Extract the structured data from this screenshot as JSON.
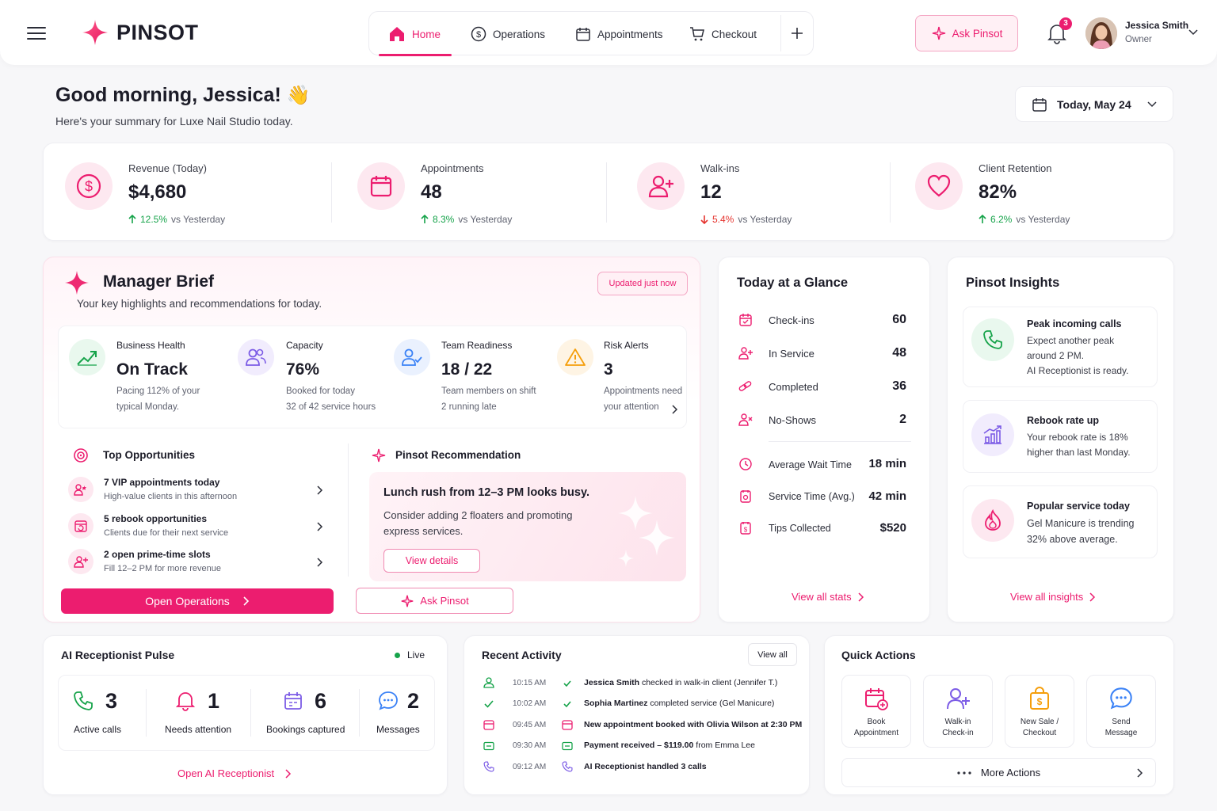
{
  "brand": {
    "name": "PINSOT"
  },
  "nav": {
    "home": "Home",
    "operations": "Operations",
    "appointments": "Appointments",
    "checkout": "Checkout"
  },
  "header": {
    "ask_label": "Ask Pinsot",
    "notif_count": "3",
    "user_name": "Jessica Smith",
    "user_role": "Owner"
  },
  "greeting": {
    "title": "Good morning, Jessica!",
    "emoji": "👋",
    "subtitle": "Here's your summary for Luxe Nail Studio today.",
    "date_label": "Today, May 24"
  },
  "stats": [
    {
      "label": "Revenue (Today)",
      "value": "$4,680",
      "delta": "12.5%",
      "suffix": "vs Yesterday",
      "trend": "up"
    },
    {
      "label": "Appointments",
      "value": "48",
      "delta": "8.3%",
      "suffix": "vs Yesterday",
      "trend": "up"
    },
    {
      "label": "Walk-ins",
      "value": "12",
      "delta": "5.4%",
      "suffix": "vs Yesterday",
      "trend": "down"
    },
    {
      "label": "Client Retention",
      "value": "82%",
      "delta": "6.2%",
      "suffix": "vs Yesterday",
      "trend": "up"
    }
  ],
  "brief": {
    "title": "Manager Brief",
    "subtitle": "Your key highlights and recommendations for today.",
    "badge": "Updated just now",
    "metrics": [
      {
        "label": "Business Health",
        "value": "On Track",
        "line1": "Pacing 112% of your",
        "line2": "typical Monday."
      },
      {
        "label": "Capacity",
        "value": "76%",
        "line1": "Booked for today",
        "line2": "32 of 42 service hours"
      },
      {
        "label": "Team Readiness",
        "value": "18 / 22",
        "line1": "Team members on shift",
        "line2": "2 running late"
      },
      {
        "label": "Risk Alerts",
        "value": "3",
        "line1": "Appointments need",
        "line2": "your attention"
      }
    ],
    "opps_title": "Top Opportunities",
    "opps": [
      {
        "title": "7 VIP appointments today",
        "sub": "High-value clients in this afternoon"
      },
      {
        "title": "5 rebook opportunities",
        "sub": "Clients due for their next service"
      },
      {
        "title": "2 open prime-time slots",
        "sub": "Fill 12–2 PM for more revenue"
      }
    ],
    "rec_title": "Pinsot Recommendation",
    "rec_heading": "Lunch rush from 12–3 PM looks busy.",
    "rec_body1": "Consider adding 2 floaters and promoting",
    "rec_body2": "express services.",
    "rec_button": "View details",
    "open_ops": "Open Operations",
    "ask": "Ask Pinsot"
  },
  "glance": {
    "title": "Today at a Glance",
    "rows": [
      {
        "label": "Check-ins",
        "value": "60"
      },
      {
        "label": "In Service",
        "value": "48"
      },
      {
        "label": "Completed",
        "value": "36"
      },
      {
        "label": "No-Shows",
        "value": "2"
      }
    ],
    "rows2": [
      {
        "label": "Average Wait Time",
        "value": "18 min"
      },
      {
        "label": "Service Time (Avg.)",
        "value": "42 min"
      },
      {
        "label": "Tips Collected",
        "value": "$520"
      }
    ],
    "link": "View all stats"
  },
  "insights": {
    "title": "Pinsot Insights",
    "items": [
      {
        "title": "Peak incoming calls",
        "l1": "Expect another peak",
        "l2": "around 2 PM.",
        "l3": "AI Receptionist is ready."
      },
      {
        "title": "Rebook rate up",
        "l1": "Your rebook rate is 18%",
        "l2": "higher than last Monday.",
        "l3": ""
      },
      {
        "title": "Popular service today",
        "l1": "Gel Manicure is trending",
        "l2": "32% above average.",
        "l3": ""
      }
    ],
    "link": "View all insights"
  },
  "pulse": {
    "title": "AI Receptionist Pulse",
    "live": "Live",
    "items": [
      {
        "value": "3",
        "label": "Active calls"
      },
      {
        "value": "1",
        "label": "Needs attention"
      },
      {
        "value": "6",
        "label": "Bookings captured"
      },
      {
        "value": "2",
        "label": "Messages"
      }
    ],
    "link": "Open AI Receptionist"
  },
  "activity": {
    "title": "Recent Activity",
    "view_all": "View all",
    "rows": [
      {
        "time": "10:15 AM",
        "bold": "Jessica Smith",
        "rest": " checked in walk-in client (Jennifer T.)"
      },
      {
        "time": "10:02 AM",
        "bold": "Sophia Martinez",
        "rest": " completed service (Gel Manicure)"
      },
      {
        "time": "09:45 AM",
        "bold": "New appointment booked with Olivia Wilson at 2:30 PM",
        "rest": ""
      },
      {
        "time": "09:30 AM",
        "bold": "Payment received – $119.00",
        "rest": " from Emma Lee"
      },
      {
        "time": "09:12 AM",
        "bold": "AI Receptionist handled 3 calls",
        "rest": ""
      }
    ]
  },
  "quick": {
    "title": "Quick Actions",
    "items": [
      {
        "l1": "Book",
        "l2": "Appointment"
      },
      {
        "l1": "Walk-in",
        "l2": "Check-in"
      },
      {
        "l1": "New Sale /",
        "l2": "Checkout"
      },
      {
        "l1": "Send",
        "l2": "Message"
      }
    ],
    "more": "More Actions"
  },
  "colors": {
    "accent": "#ec1d6f",
    "green": "#16a34a",
    "red": "#e5332e",
    "purple": "#7c5ce6",
    "blue": "#3b82f6",
    "orange": "#f59e0b"
  }
}
